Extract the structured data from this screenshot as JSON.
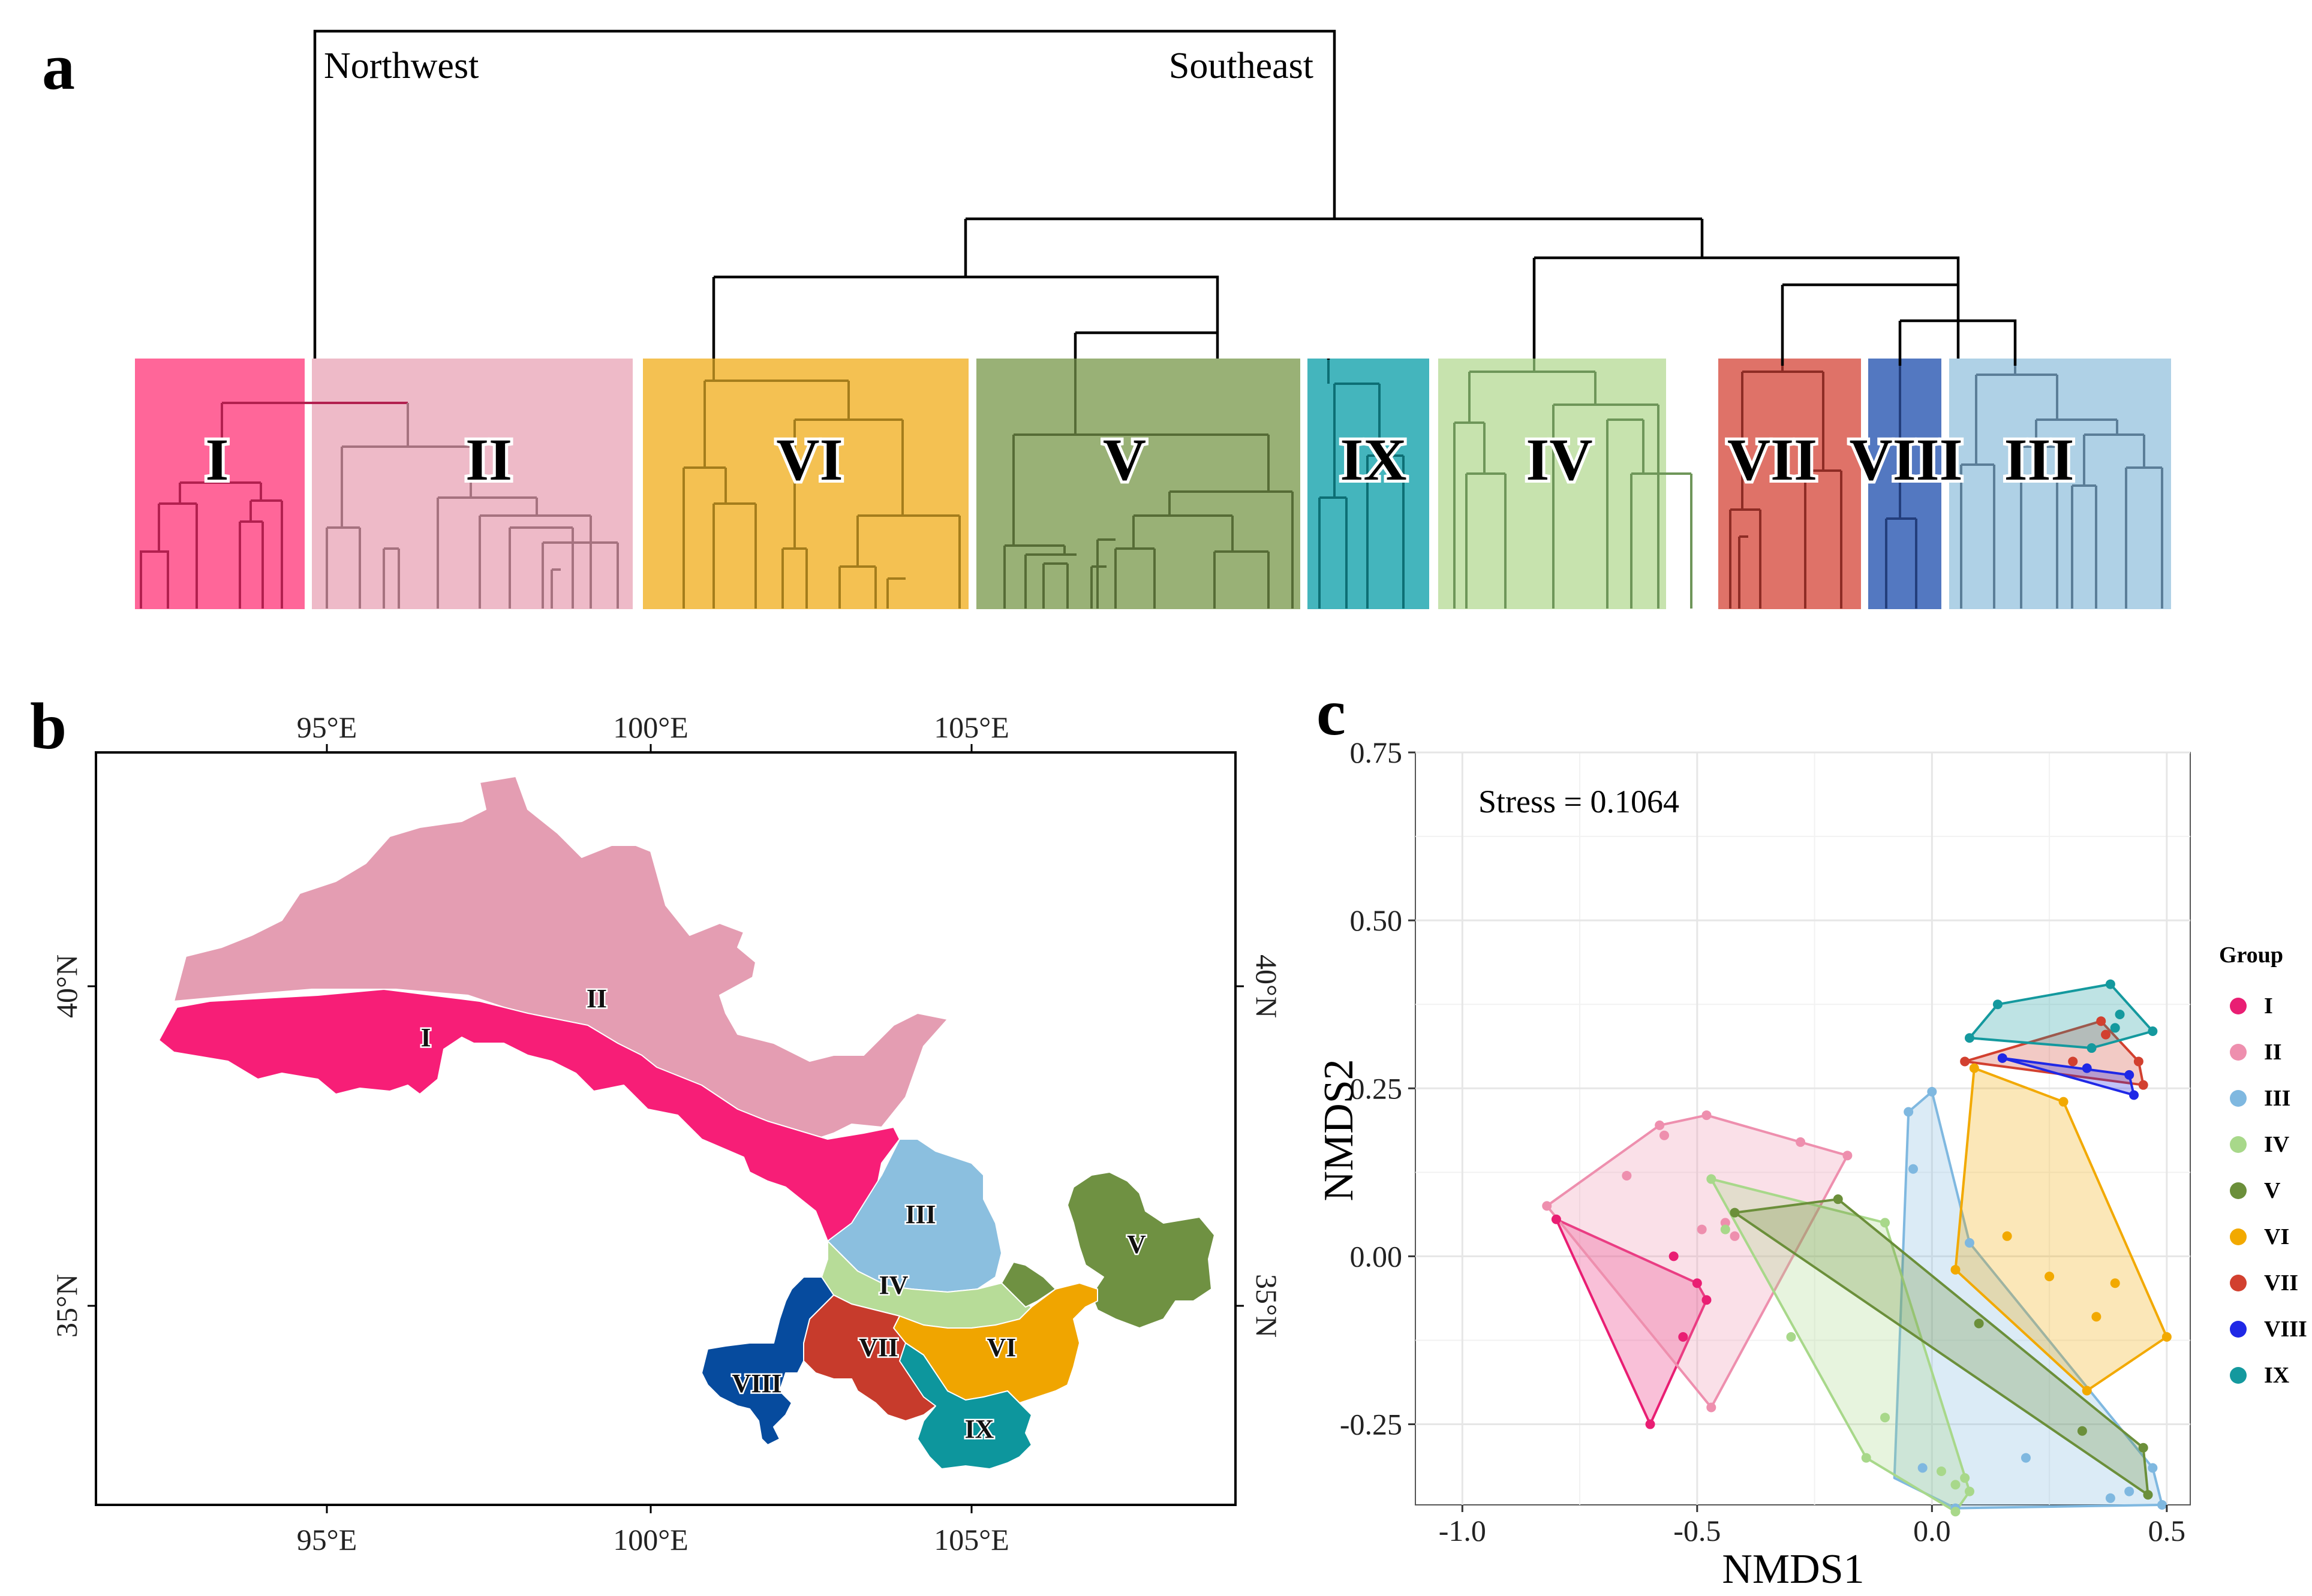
{
  "panels": {
    "a": "a",
    "b": "b",
    "c": "c"
  },
  "dendrogram": {
    "left_label": "Northwest",
    "right_label": "Southeast",
    "clusters": [
      {
        "name": "I",
        "color": "#FF6699"
      },
      {
        "name": "II",
        "color": "#EEBAC8"
      },
      {
        "name": "VI",
        "color": "#F4C152"
      },
      {
        "name": "V",
        "color": "#99B176"
      },
      {
        "name": "IX",
        "color": "#44B5BD"
      },
      {
        "name": "IV",
        "color": "#C7E3AE"
      },
      {
        "name": "VII",
        "color": "#DF7268"
      },
      {
        "name": "VIII",
        "color": "#5378C1"
      },
      {
        "name": "III",
        "color": "#AFD1E6"
      }
    ]
  },
  "map": {
    "lon_ticks": [
      "95°E",
      "100°E",
      "105°E"
    ],
    "lat_ticks": [
      "40°N",
      "35°N"
    ],
    "regions": [
      {
        "name": "I",
        "color": "#F71E77"
      },
      {
        "name": "II",
        "color": "#E49DB2"
      },
      {
        "name": "III",
        "color": "#8BBFDF"
      },
      {
        "name": "IV",
        "color": "#B7DC98"
      },
      {
        "name": "V",
        "color": "#6F9142"
      },
      {
        "name": "VI",
        "color": "#F0A500"
      },
      {
        "name": "VII",
        "color": "#C73B2C"
      },
      {
        "name": "VIII",
        "color": "#064B9E"
      },
      {
        "name": "IX",
        "color": "#0D969D"
      }
    ]
  },
  "chart_data": {
    "type": "scatter",
    "title": "",
    "annotation": "Stress = 0.1064",
    "xlabel": "NMDS1",
    "ylabel": "NMDS2",
    "xlim": [
      -1.1,
      0.55
    ],
    "ylim": [
      -0.37,
      0.75
    ],
    "xticks": [
      -1.0,
      -0.5,
      0.0,
      0.5
    ],
    "xtick_labels": [
      "-1.0",
      "-0.5",
      "0.0",
      "0.5"
    ],
    "yticks": [
      -0.25,
      0.0,
      0.25,
      0.5,
      0.75
    ],
    "ytick_labels": [
      "-0.25",
      "0.00",
      "0.25",
      "0.50",
      "0.75"
    ],
    "grid": true,
    "legend": {
      "title": "Group",
      "position": "right"
    },
    "series": [
      {
        "name": "I",
        "color": "#E91E73",
        "points": [
          [
            -0.8,
            0.055
          ],
          [
            -0.55,
            0.0
          ],
          [
            -0.48,
            -0.065
          ],
          [
            -0.5,
            -0.04
          ],
          [
            -0.6,
            -0.25
          ],
          [
            -0.53,
            -0.12
          ]
        ],
        "hull": [
          [
            -0.8,
            0.055
          ],
          [
            -0.5,
            -0.04
          ],
          [
            -0.48,
            -0.065
          ],
          [
            -0.6,
            -0.25
          ]
        ]
      },
      {
        "name": "II",
        "color": "#EE8FAE",
        "points": [
          [
            -0.82,
            0.075
          ],
          [
            -0.58,
            0.195
          ],
          [
            -0.48,
            0.21
          ],
          [
            -0.28,
            0.17
          ],
          [
            -0.18,
            0.15
          ],
          [
            -0.47,
            -0.225
          ],
          [
            -0.65,
            0.12
          ],
          [
            -0.57,
            0.18
          ],
          [
            -0.49,
            0.04
          ],
          [
            -0.42,
            0.03
          ],
          [
            -0.44,
            0.05
          ]
        ],
        "hull": [
          [
            -0.82,
            0.075
          ],
          [
            -0.58,
            0.195
          ],
          [
            -0.48,
            0.21
          ],
          [
            -0.28,
            0.17
          ],
          [
            -0.18,
            0.15
          ],
          [
            -0.47,
            -0.225
          ]
        ]
      },
      {
        "name": "III",
        "color": "#7FB8E0",
        "points": [
          [
            -0.05,
            0.215
          ],
          [
            0.0,
            0.245
          ],
          [
            0.08,
            0.02
          ],
          [
            0.47,
            -0.315
          ],
          [
            0.49,
            -0.37
          ],
          [
            0.05,
            -0.375
          ],
          [
            -0.02,
            -0.315
          ],
          [
            0.2,
            -0.3
          ],
          [
            0.42,
            -0.35
          ],
          [
            0.38,
            -0.36
          ],
          [
            -0.04,
            0.13
          ]
        ],
        "hull": [
          [
            -0.05,
            0.215
          ],
          [
            0.0,
            0.245
          ],
          [
            0.08,
            0.02
          ],
          [
            0.47,
            -0.315
          ],
          [
            0.49,
            -0.37
          ],
          [
            0.05,
            -0.375
          ],
          [
            -0.08,
            -0.33
          ]
        ]
      },
      {
        "name": "IV",
        "color": "#A8D88A",
        "points": [
          [
            -0.47,
            0.115
          ],
          [
            -0.1,
            0.05
          ],
          [
            0.05,
            -0.38
          ],
          [
            0.08,
            -0.35
          ],
          [
            -0.14,
            -0.3
          ],
          [
            -0.1,
            -0.24
          ],
          [
            0.02,
            -0.32
          ],
          [
            0.05,
            -0.34
          ],
          [
            0.07,
            -0.33
          ],
          [
            -0.3,
            -0.12
          ],
          [
            -0.44,
            0.04
          ]
        ],
        "hull": [
          [
            -0.47,
            0.115
          ],
          [
            -0.1,
            0.05
          ],
          [
            0.08,
            -0.35
          ],
          [
            0.05,
            -0.38
          ],
          [
            -0.14,
            -0.3
          ]
        ]
      },
      {
        "name": "V",
        "color": "#6B8F3A",
        "points": [
          [
            -0.42,
            0.065
          ],
          [
            -0.2,
            0.085
          ],
          [
            0.45,
            -0.285
          ],
          [
            0.46,
            -0.355
          ],
          [
            0.32,
            -0.26
          ],
          [
            0.1,
            -0.1
          ]
        ],
        "hull": [
          [
            -0.42,
            0.065
          ],
          [
            -0.2,
            0.085
          ],
          [
            0.45,
            -0.285
          ],
          [
            0.46,
            -0.355
          ]
        ]
      },
      {
        "name": "VI",
        "color": "#F2A900",
        "points": [
          [
            0.09,
            0.28
          ],
          [
            0.28,
            0.23
          ],
          [
            0.5,
            -0.12
          ],
          [
            0.33,
            -0.2
          ],
          [
            0.05,
            -0.02
          ],
          [
            0.16,
            0.03
          ],
          [
            0.35,
            -0.09
          ],
          [
            0.39,
            -0.04
          ],
          [
            0.25,
            -0.03
          ]
        ],
        "hull": [
          [
            0.09,
            0.28
          ],
          [
            0.28,
            0.23
          ],
          [
            0.5,
            -0.12
          ],
          [
            0.33,
            -0.2
          ],
          [
            0.05,
            -0.02
          ]
        ]
      },
      {
        "name": "VII",
        "color": "#D2402F",
        "points": [
          [
            0.07,
            0.29
          ],
          [
            0.36,
            0.35
          ],
          [
            0.44,
            0.29
          ],
          [
            0.45,
            0.255
          ],
          [
            0.3,
            0.29
          ],
          [
            0.37,
            0.33
          ]
        ],
        "hull": [
          [
            0.07,
            0.29
          ],
          [
            0.36,
            0.35
          ],
          [
            0.44,
            0.29
          ],
          [
            0.45,
            0.255
          ]
        ]
      },
      {
        "name": "VIII",
        "color": "#1F28E6",
        "points": [
          [
            0.15,
            0.295
          ],
          [
            0.42,
            0.27
          ],
          [
            0.43,
            0.24
          ],
          [
            0.33,
            0.28
          ]
        ],
        "hull": [
          [
            0.15,
            0.295
          ],
          [
            0.42,
            0.27
          ],
          [
            0.43,
            0.24
          ]
        ]
      },
      {
        "name": "IX",
        "color": "#14999E",
        "points": [
          [
            0.08,
            0.325
          ],
          [
            0.14,
            0.375
          ],
          [
            0.38,
            0.405
          ],
          [
            0.47,
            0.335
          ],
          [
            0.34,
            0.31
          ],
          [
            0.39,
            0.34
          ],
          [
            0.4,
            0.36
          ]
        ],
        "hull": [
          [
            0.08,
            0.325
          ],
          [
            0.14,
            0.375
          ],
          [
            0.38,
            0.405
          ],
          [
            0.47,
            0.335
          ],
          [
            0.34,
            0.31
          ]
        ]
      }
    ]
  }
}
